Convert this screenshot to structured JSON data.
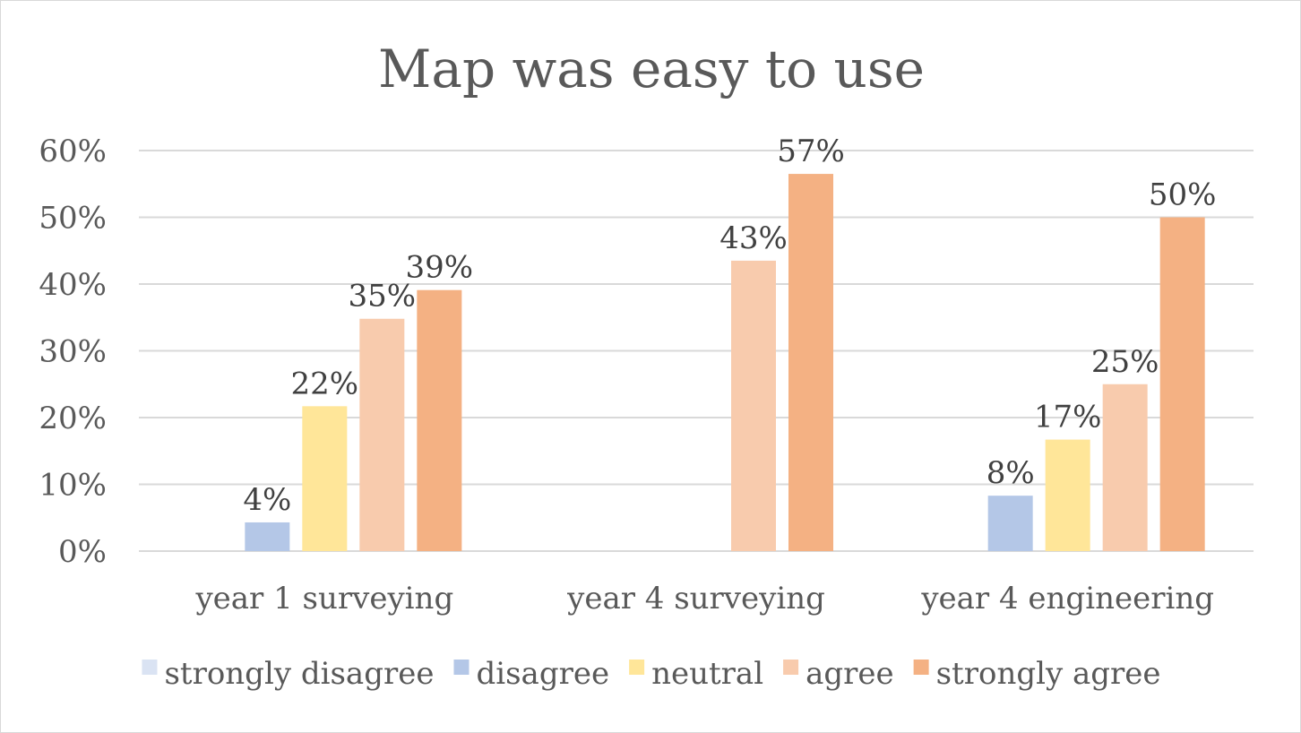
{
  "chart_data": {
    "type": "bar",
    "title": "Map was easy to use",
    "categories": [
      "year 1 surveying",
      "year 4 surveying",
      "year 4 engineering"
    ],
    "series": [
      {
        "name": "strongly disagree",
        "color": "#dae3f3",
        "values": [
          0,
          0,
          0
        ],
        "labels": [
          "",
          "",
          ""
        ]
      },
      {
        "name": "disagree",
        "color": "#b4c7e7",
        "values": [
          4.3,
          0,
          8.3
        ],
        "labels": [
          "4%",
          "",
          "8%"
        ]
      },
      {
        "name": "neutral",
        "color": "#ffe699",
        "values": [
          21.7,
          0,
          16.7
        ],
        "labels": [
          "22%",
          "",
          "17%"
        ]
      },
      {
        "name": "agree",
        "color": "#f8cbad",
        "values": [
          34.8,
          43.5,
          25.0
        ],
        "labels": [
          "35%",
          "43%",
          "25%"
        ]
      },
      {
        "name": "strongly agree",
        "color": "#f4b183",
        "values": [
          39.1,
          56.5,
          50.0
        ],
        "labels": [
          "39%",
          "57%",
          "50%"
        ]
      }
    ],
    "y_ticks": [
      "0%",
      "10%",
      "20%",
      "30%",
      "40%",
      "50%",
      "60%"
    ],
    "ylim": [
      0,
      60
    ],
    "grid": true,
    "legend": "bottom"
  }
}
